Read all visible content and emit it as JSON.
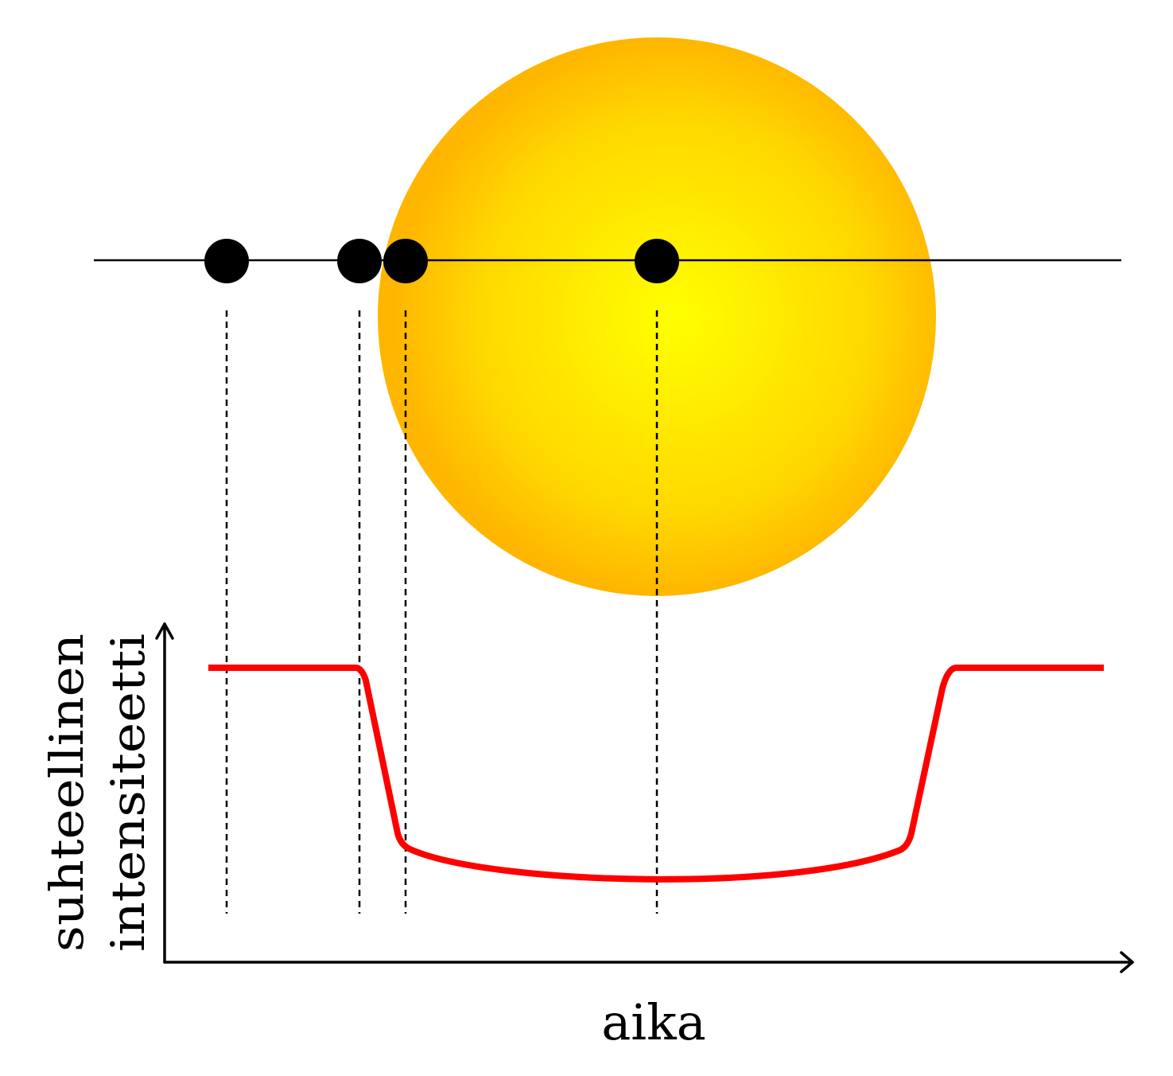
{
  "diagram": {
    "xlabel": "aika",
    "ylabel_line1": "suhteellinen",
    "ylabel_line2": "intensiteetti"
  },
  "colors": {
    "star_center": "#ffff00",
    "star_edge": "#ffb600",
    "planet": "#000000",
    "light_curve": "#ff0000",
    "axes": "#000000",
    "guide_lines": "#000000"
  },
  "icons": {
    "star": "star-disc-icon",
    "planet": "planet-dot-icon"
  }
}
